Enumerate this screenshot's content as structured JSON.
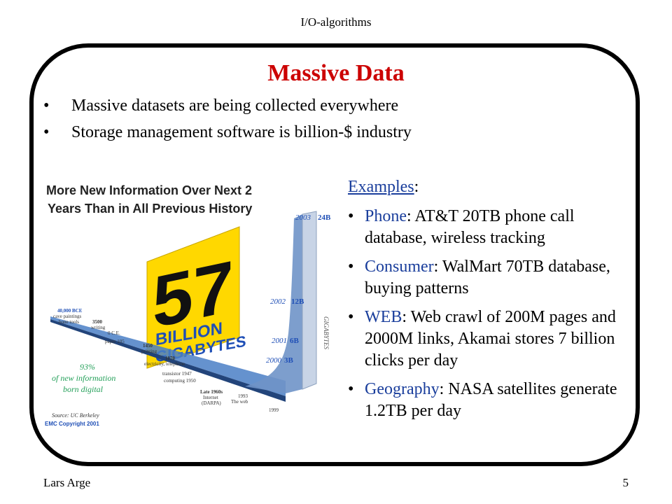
{
  "header": "I/O-algorithms",
  "title": "Massive Data",
  "bullets": [
    "Massive datasets are being collected everywhere",
    "Storage management software is billion-$ industry"
  ],
  "examples_heading": "Examples",
  "examples_colon": ":",
  "examples": [
    {
      "key": "Phone",
      "text": ": AT&T 20TB phone call database, wireless tracking"
    },
    {
      "key": "Consumer",
      "text": ": WalMart 70TB database, buying patterns"
    },
    {
      "key": "WEB",
      "text": ": Web crawl of 200M pages and 2000M links, Akamai stores 7 billion clicks per day"
    },
    {
      "key": "Geography",
      "text": ": NASA satellites generate 1.2TB per day"
    }
  ],
  "footer_left": "Lars Arge",
  "footer_right": "5",
  "figure": {
    "headline_1": "More New Information Over Next 2",
    "headline_2": "Years Than in All Previous History",
    "big_number": "57",
    "unit_1": "BILLION",
    "unit_2": "GIGABYTES",
    "axis_label": "GIGABYTES",
    "yr_2003": "2003",
    "val_2003": "24B",
    "yr_2002": "2002",
    "val_2002": "12B",
    "yr_2001": "2001",
    "val_2001": "6B",
    "yr_2000": "2000",
    "val_2000": "3B",
    "lbl_1999": "1999",
    "lbl_1993a": "1993",
    "lbl_1993b": "The web",
    "lbl_late60a": "Late 1960s",
    "lbl_late60b": "Internet",
    "lbl_late60c": "(DARPA)",
    "lbl_1950": "computing 1950",
    "lbl_1947": "transistor 1947",
    "lbl_1870": "1870",
    "lbl_1870b": "electricity, telephone",
    "lbl_1450": "1450",
    "lbl_1450b": "printing",
    "lbl_105": "paper 105",
    "lbl_oce": "0 C.E.",
    "lbl_3500a": "3500",
    "lbl_3500b": "writing",
    "lbl_40000a": "40,000 BCE",
    "lbl_40000b": "cave paintings",
    "lbl_40000c": "bone tools",
    "pct": "93%",
    "pct_b": "of new information",
    "pct_c": "born digital",
    "source": "Source: UC Berkeley",
    "copyright": "EMC Copyright 2001"
  },
  "colors": {
    "title": "#cc0000",
    "link": "#1a3e9c",
    "yellow": "#ffd800",
    "blue": "#1f4fb6",
    "pct": "#25a05a"
  }
}
